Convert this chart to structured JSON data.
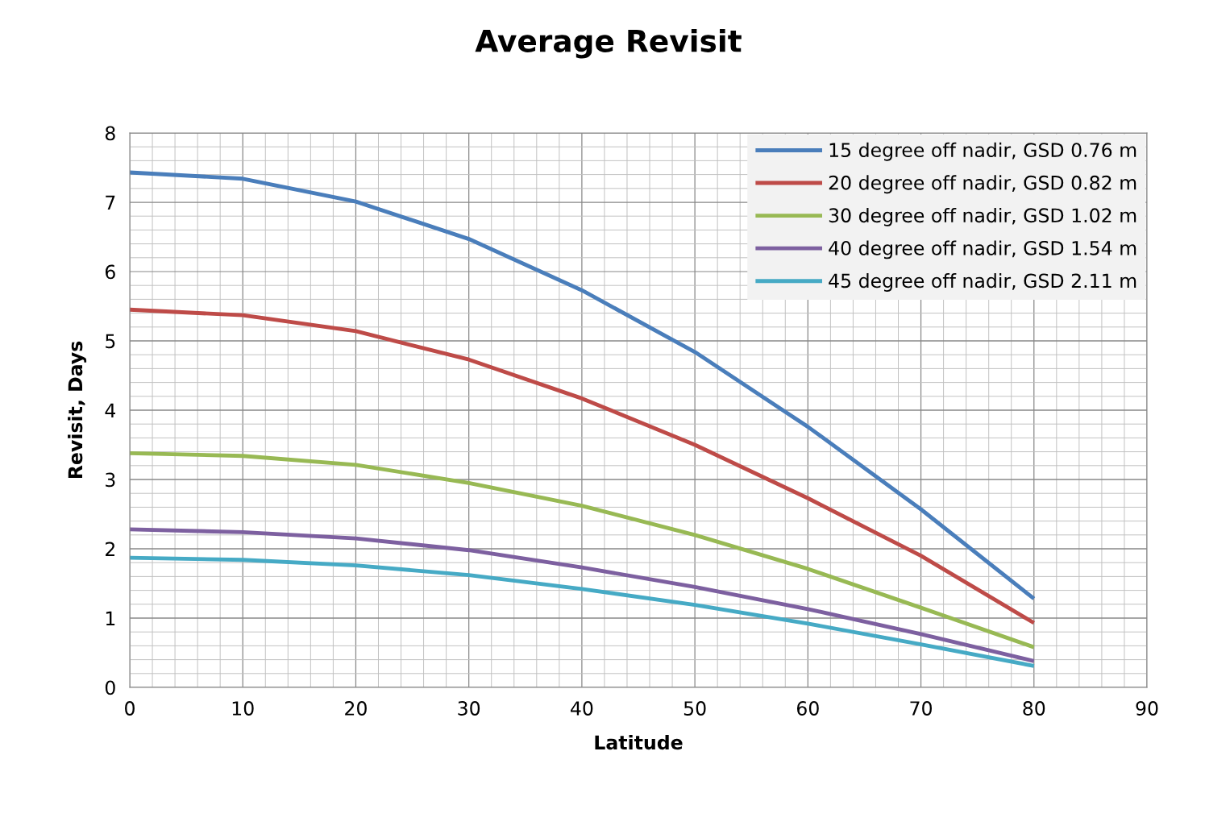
{
  "chart_data": {
    "type": "line",
    "title": "Average Revisit",
    "xlabel": "Latitude",
    "ylabel": "Revisit, Days",
    "x": [
      0,
      10,
      20,
      30,
      40,
      50,
      60,
      70,
      80
    ],
    "series": [
      {
        "name": "15 degree off nadir, GSD 0.76 m",
        "color": "#4a7ebb",
        "values": [
          7.43,
          7.34,
          7.01,
          6.47,
          5.73,
          4.84,
          3.76,
          2.57,
          1.28
        ]
      },
      {
        "name": "20 degree off nadir, GSD 0.82 m",
        "color": "#be4b48",
        "values": [
          5.45,
          5.37,
          5.14,
          4.73,
          4.17,
          3.5,
          2.73,
          1.9,
          0.93
        ]
      },
      {
        "name": "30 degree off nadir, GSD 1.02 m",
        "color": "#98b954",
        "values": [
          3.38,
          3.34,
          3.21,
          2.95,
          2.62,
          2.2,
          1.71,
          1.15,
          0.58
        ]
      },
      {
        "name": "40 degree off nadir, GSD 1.54 m",
        "color": "#7d60a0",
        "values": [
          2.28,
          2.24,
          2.15,
          1.98,
          1.73,
          1.45,
          1.13,
          0.77,
          0.38
        ]
      },
      {
        "name": "45 degree off nadir, GSD 2.11 m",
        "color": "#46aac5",
        "values": [
          1.87,
          1.84,
          1.76,
          1.62,
          1.42,
          1.19,
          0.92,
          0.62,
          0.31
        ]
      }
    ],
    "xlim": [
      0,
      90
    ],
    "xticks": [
      0,
      10,
      20,
      30,
      40,
      50,
      60,
      70,
      80,
      90
    ],
    "ylim": [
      0,
      8
    ],
    "yticks": [
      0,
      1,
      2,
      3,
      4,
      5,
      6,
      7,
      8
    ],
    "grid": true,
    "legend": "top right",
    "marker": "none",
    "line_style": "solid"
  }
}
